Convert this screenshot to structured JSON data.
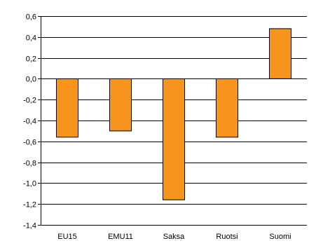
{
  "chart_data": {
    "type": "bar",
    "title": "",
    "xlabel": "",
    "ylabel": "",
    "categories": [
      "EU15",
      "EMU11",
      "Saksa",
      "Ruotsi",
      "Suomi"
    ],
    "values": [
      -0.56,
      -0.5,
      -1.16,
      -0.56,
      0.48
    ],
    "ylim": [
      -1.4,
      0.6
    ],
    "yticks": [
      0.6,
      0.4,
      0.2,
      0.0,
      -0.2,
      -0.4,
      -0.6,
      -0.8,
      -1.0,
      -1.2,
      -1.4
    ],
    "ytick_labels": [
      "0,6",
      "0,4",
      "0,2",
      "0,0",
      "-0,2",
      "-0,4",
      "-0,6",
      "-0,8",
      "-1,0",
      "-1,2",
      "-1,4"
    ],
    "grid": true,
    "legend": "none",
    "colors": {
      "bar_fill": "#F7941D",
      "bar_stroke": "#000000",
      "grid": "#000000",
      "axis": "#000000"
    }
  }
}
